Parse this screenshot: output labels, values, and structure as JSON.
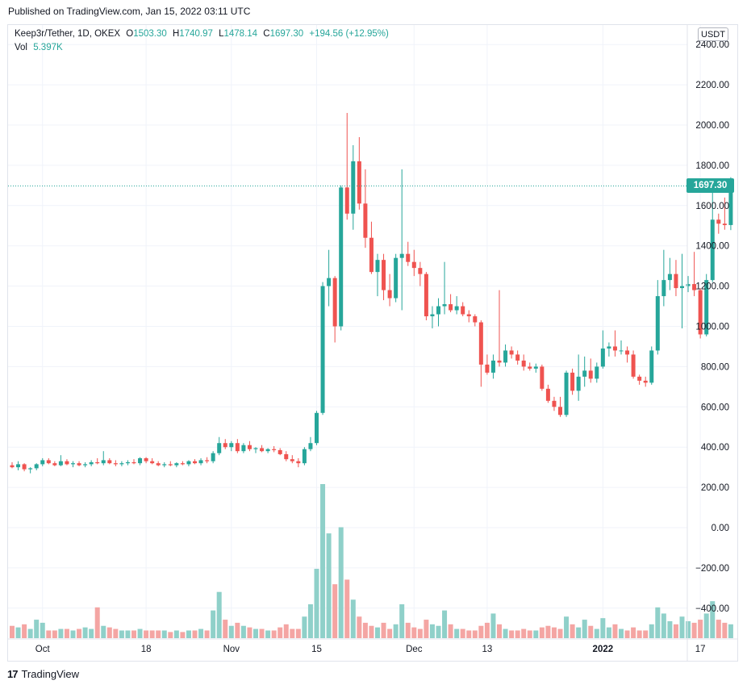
{
  "header": {
    "published": "Published on TradingView.com, Jan 15, 2022 03:11 UTC"
  },
  "legend": {
    "symbol": "Keep3r/Tether, 1D, OKEX",
    "o_label": "O",
    "o": "1503.30",
    "h_label": "H",
    "h": "1740.97",
    "l_label": "L",
    "l": "1478.14",
    "c_label": "C",
    "c": "1697.30",
    "change": "+194.56 (+12.95%)",
    "vol_label": "Vol",
    "vol": "5.397K"
  },
  "currency_button": "USDT",
  "last_price_label": "1697.30",
  "brand": {
    "logo": "17",
    "name": "TradingView"
  },
  "colors": {
    "up": "#26a69a",
    "down": "#ef5350",
    "vol_up": "#8fd0c9",
    "vol_down": "#f4a5a3",
    "grid": "#f0f3fa"
  },
  "chart_data": {
    "type": "candlestick",
    "title": "Keep3r/Tether, 1D, OKEX",
    "y_ticks": [
      "2400.00",
      "2200.00",
      "2000.00",
      "1800.00",
      "1600.00",
      "1400.00",
      "1200.00",
      "1000.00",
      "800.00",
      "600.00",
      "400.00",
      "200.00",
      "0.00",
      "−200.00",
      "−400.00"
    ],
    "ylim": [
      -550,
      2420
    ],
    "x_ticks": [
      "Oct",
      "18",
      "Nov",
      "15",
      "Dec",
      "13",
      "2022",
      "17"
    ],
    "bold_x_ticks": [
      "2022"
    ],
    "x_tick_dates": [
      "2021-10-01",
      "2021-10-18",
      "2021-11-01",
      "2021-11-15",
      "2021-12-01",
      "2021-12-13",
      "2022-01-01",
      "2022-01-17"
    ],
    "last_price": 1697.3,
    "volume_axis": {
      "note": "volume pane shares the bottom of the chart",
      "max_volume": 100
    },
    "candles": [
      {
        "d": "2021-09-26",
        "o": 310,
        "h": 325,
        "l": 295,
        "c": 300,
        "v": 8
      },
      {
        "d": "2021-09-27",
        "o": 300,
        "h": 330,
        "l": 285,
        "c": 315,
        "v": 7
      },
      {
        "d": "2021-09-28",
        "o": 315,
        "h": 320,
        "l": 280,
        "c": 290,
        "v": 9
      },
      {
        "d": "2021-09-29",
        "o": 290,
        "h": 300,
        "l": 270,
        "c": 295,
        "v": 6
      },
      {
        "d": "2021-09-30",
        "o": 295,
        "h": 320,
        "l": 285,
        "c": 315,
        "v": 12
      },
      {
        "d": "2021-10-01",
        "o": 315,
        "h": 345,
        "l": 305,
        "c": 335,
        "v": 10
      },
      {
        "d": "2021-10-02",
        "o": 335,
        "h": 345,
        "l": 315,
        "c": 320,
        "v": 5
      },
      {
        "d": "2021-10-03",
        "o": 320,
        "h": 330,
        "l": 305,
        "c": 310,
        "v": 5
      },
      {
        "d": "2021-10-04",
        "o": 310,
        "h": 360,
        "l": 305,
        "c": 330,
        "v": 6
      },
      {
        "d": "2021-10-05",
        "o": 330,
        "h": 340,
        "l": 310,
        "c": 315,
        "v": 6
      },
      {
        "d": "2021-10-06",
        "o": 315,
        "h": 330,
        "l": 300,
        "c": 320,
        "v": 5
      },
      {
        "d": "2021-10-07",
        "o": 320,
        "h": 330,
        "l": 305,
        "c": 310,
        "v": 6
      },
      {
        "d": "2021-10-08",
        "o": 310,
        "h": 325,
        "l": 300,
        "c": 315,
        "v": 7
      },
      {
        "d": "2021-10-09",
        "o": 315,
        "h": 335,
        "l": 305,
        "c": 325,
        "v": 6
      },
      {
        "d": "2021-10-10",
        "o": 325,
        "h": 345,
        "l": 315,
        "c": 320,
        "v": 20
      },
      {
        "d": "2021-10-11",
        "o": 320,
        "h": 380,
        "l": 310,
        "c": 335,
        "v": 8
      },
      {
        "d": "2021-10-12",
        "o": 335,
        "h": 345,
        "l": 315,
        "c": 320,
        "v": 7
      },
      {
        "d": "2021-10-13",
        "o": 320,
        "h": 335,
        "l": 305,
        "c": 315,
        "v": 6
      },
      {
        "d": "2021-10-14",
        "o": 315,
        "h": 330,
        "l": 305,
        "c": 320,
        "v": 5
      },
      {
        "d": "2021-10-15",
        "o": 320,
        "h": 335,
        "l": 310,
        "c": 325,
        "v": 5
      },
      {
        "d": "2021-10-16",
        "o": 325,
        "h": 340,
        "l": 315,
        "c": 320,
        "v": 5
      },
      {
        "d": "2021-10-17",
        "o": 320,
        "h": 350,
        "l": 310,
        "c": 345,
        "v": 6
      },
      {
        "d": "2021-10-18",
        "o": 345,
        "h": 350,
        "l": 320,
        "c": 330,
        "v": 5
      },
      {
        "d": "2021-10-19",
        "o": 330,
        "h": 345,
        "l": 315,
        "c": 320,
        "v": 5
      },
      {
        "d": "2021-10-20",
        "o": 320,
        "h": 330,
        "l": 305,
        "c": 310,
        "v": 5
      },
      {
        "d": "2021-10-21",
        "o": 310,
        "h": 325,
        "l": 300,
        "c": 315,
        "v": 5
      },
      {
        "d": "2021-10-22",
        "o": 315,
        "h": 330,
        "l": 305,
        "c": 310,
        "v": 4
      },
      {
        "d": "2021-10-23",
        "o": 310,
        "h": 325,
        "l": 300,
        "c": 320,
        "v": 5
      },
      {
        "d": "2021-10-24",
        "o": 320,
        "h": 330,
        "l": 310,
        "c": 315,
        "v": 4
      },
      {
        "d": "2021-10-25",
        "o": 315,
        "h": 335,
        "l": 305,
        "c": 330,
        "v": 5
      },
      {
        "d": "2021-10-26",
        "o": 330,
        "h": 340,
        "l": 315,
        "c": 320,
        "v": 5
      },
      {
        "d": "2021-10-27",
        "o": 320,
        "h": 345,
        "l": 310,
        "c": 335,
        "v": 6
      },
      {
        "d": "2021-10-28",
        "o": 335,
        "h": 350,
        "l": 320,
        "c": 330,
        "v": 5
      },
      {
        "d": "2021-10-29",
        "o": 330,
        "h": 380,
        "l": 320,
        "c": 370,
        "v": 18
      },
      {
        "d": "2021-10-30",
        "o": 370,
        "h": 450,
        "l": 360,
        "c": 420,
        "v": 30
      },
      {
        "d": "2021-10-31",
        "o": 420,
        "h": 440,
        "l": 390,
        "c": 400,
        "v": 12
      },
      {
        "d": "2021-11-01",
        "o": 400,
        "h": 430,
        "l": 380,
        "c": 420,
        "v": 8
      },
      {
        "d": "2021-11-02",
        "o": 420,
        "h": 440,
        "l": 370,
        "c": 380,
        "v": 10
      },
      {
        "d": "2021-11-03",
        "o": 380,
        "h": 420,
        "l": 370,
        "c": 410,
        "v": 8
      },
      {
        "d": "2021-11-04",
        "o": 410,
        "h": 430,
        "l": 380,
        "c": 390,
        "v": 7
      },
      {
        "d": "2021-11-05",
        "o": 390,
        "h": 400,
        "l": 370,
        "c": 395,
        "v": 6
      },
      {
        "d": "2021-11-06",
        "o": 395,
        "h": 410,
        "l": 375,
        "c": 380,
        "v": 6
      },
      {
        "d": "2021-11-07",
        "o": 380,
        "h": 395,
        "l": 370,
        "c": 390,
        "v": 5
      },
      {
        "d": "2021-11-08",
        "o": 390,
        "h": 405,
        "l": 375,
        "c": 385,
        "v": 5
      },
      {
        "d": "2021-11-09",
        "o": 385,
        "h": 395,
        "l": 360,
        "c": 365,
        "v": 7
      },
      {
        "d": "2021-11-10",
        "o": 365,
        "h": 380,
        "l": 330,
        "c": 340,
        "v": 9
      },
      {
        "d": "2021-11-11",
        "o": 340,
        "h": 360,
        "l": 320,
        "c": 330,
        "v": 6
      },
      {
        "d": "2021-11-12",
        "o": 330,
        "h": 345,
        "l": 300,
        "c": 320,
        "v": 6
      },
      {
        "d": "2021-11-13",
        "o": 320,
        "h": 400,
        "l": 310,
        "c": 390,
        "v": 14
      },
      {
        "d": "2021-11-14",
        "o": 390,
        "h": 450,
        "l": 380,
        "c": 420,
        "v": 22
      },
      {
        "d": "2021-11-15",
        "o": 420,
        "h": 580,
        "l": 410,
        "c": 570,
        "v": 45
      },
      {
        "d": "2021-11-16",
        "o": 570,
        "h": 1220,
        "l": 560,
        "c": 1200,
        "v": 100
      },
      {
        "d": "2021-11-17",
        "o": 1200,
        "h": 1380,
        "l": 1100,
        "c": 1240,
        "v": 68
      },
      {
        "d": "2021-11-18",
        "o": 1240,
        "h": 1250,
        "l": 920,
        "c": 1000,
        "v": 35
      },
      {
        "d": "2021-11-19",
        "o": 1000,
        "h": 1700,
        "l": 980,
        "c": 1690,
        "v": 72
      },
      {
        "d": "2021-11-20",
        "o": 1690,
        "h": 2060,
        "l": 1530,
        "c": 1560,
        "v": 38
      },
      {
        "d": "2021-11-21",
        "o": 1560,
        "h": 1900,
        "l": 1480,
        "c": 1820,
        "v": 25
      },
      {
        "d": "2021-11-22",
        "o": 1820,
        "h": 1940,
        "l": 1580,
        "c": 1610,
        "v": 14
      },
      {
        "d": "2021-11-23",
        "o": 1610,
        "h": 1780,
        "l": 1390,
        "c": 1440,
        "v": 10
      },
      {
        "d": "2021-11-24",
        "o": 1440,
        "h": 1520,
        "l": 1260,
        "c": 1270,
        "v": 8
      },
      {
        "d": "2021-11-25",
        "o": 1270,
        "h": 1360,
        "l": 1150,
        "c": 1330,
        "v": 7
      },
      {
        "d": "2021-11-26",
        "o": 1330,
        "h": 1360,
        "l": 1130,
        "c": 1180,
        "v": 10
      },
      {
        "d": "2021-11-27",
        "o": 1180,
        "h": 1260,
        "l": 1100,
        "c": 1140,
        "v": 6
      },
      {
        "d": "2021-11-28",
        "o": 1140,
        "h": 1360,
        "l": 1120,
        "c": 1340,
        "v": 9
      },
      {
        "d": "2021-11-29",
        "o": 1340,
        "h": 1780,
        "l": 1080,
        "c": 1360,
        "v": 22
      },
      {
        "d": "2021-11-30",
        "o": 1360,
        "h": 1420,
        "l": 1300,
        "c": 1320,
        "v": 10
      },
      {
        "d": "2021-12-01",
        "o": 1320,
        "h": 1380,
        "l": 1250,
        "c": 1290,
        "v": 7
      },
      {
        "d": "2021-12-02",
        "o": 1290,
        "h": 1320,
        "l": 1200,
        "c": 1260,
        "v": 6
      },
      {
        "d": "2021-12-03",
        "o": 1260,
        "h": 1270,
        "l": 1030,
        "c": 1050,
        "v": 12
      },
      {
        "d": "2021-12-04",
        "o": 1050,
        "h": 1100,
        "l": 990,
        "c": 1060,
        "v": 9
      },
      {
        "d": "2021-12-05",
        "o": 1060,
        "h": 1140,
        "l": 1000,
        "c": 1100,
        "v": 8
      },
      {
        "d": "2021-12-06",
        "o": 1100,
        "h": 1320,
        "l": 1060,
        "c": 1110,
        "v": 18
      },
      {
        "d": "2021-12-07",
        "o": 1110,
        "h": 1160,
        "l": 1070,
        "c": 1080,
        "v": 9
      },
      {
        "d": "2021-12-08",
        "o": 1080,
        "h": 1150,
        "l": 1060,
        "c": 1100,
        "v": 6
      },
      {
        "d": "2021-12-09",
        "o": 1100,
        "h": 1120,
        "l": 1050,
        "c": 1060,
        "v": 6
      },
      {
        "d": "2021-12-10",
        "o": 1060,
        "h": 1080,
        "l": 1020,
        "c": 1050,
        "v": 5
      },
      {
        "d": "2021-12-11",
        "o": 1050,
        "h": 1060,
        "l": 1000,
        "c": 1020,
        "v": 5
      },
      {
        "d": "2021-12-12",
        "o": 1020,
        "h": 1030,
        "l": 700,
        "c": 810,
        "v": 8
      },
      {
        "d": "2021-12-13",
        "o": 810,
        "h": 860,
        "l": 760,
        "c": 770,
        "v": 10
      },
      {
        "d": "2021-12-14",
        "o": 770,
        "h": 860,
        "l": 740,
        "c": 830,
        "v": 16
      },
      {
        "d": "2021-12-15",
        "o": 830,
        "h": 1180,
        "l": 800,
        "c": 820,
        "v": 9
      },
      {
        "d": "2021-12-16",
        "o": 820,
        "h": 910,
        "l": 800,
        "c": 880,
        "v": 6
      },
      {
        "d": "2021-12-17",
        "o": 880,
        "h": 900,
        "l": 840,
        "c": 860,
        "v": 5
      },
      {
        "d": "2021-12-18",
        "o": 860,
        "h": 880,
        "l": 810,
        "c": 830,
        "v": 5
      },
      {
        "d": "2021-12-19",
        "o": 830,
        "h": 860,
        "l": 780,
        "c": 800,
        "v": 6
      },
      {
        "d": "2021-12-20",
        "o": 800,
        "h": 820,
        "l": 780,
        "c": 790,
        "v": 5
      },
      {
        "d": "2021-12-21",
        "o": 790,
        "h": 815,
        "l": 770,
        "c": 800,
        "v": 5
      },
      {
        "d": "2021-12-22",
        "o": 800,
        "h": 810,
        "l": 680,
        "c": 690,
        "v": 7
      },
      {
        "d": "2021-12-23",
        "o": 690,
        "h": 710,
        "l": 620,
        "c": 630,
        "v": 8
      },
      {
        "d": "2021-12-24",
        "o": 630,
        "h": 650,
        "l": 580,
        "c": 600,
        "v": 7
      },
      {
        "d": "2021-12-25",
        "o": 600,
        "h": 650,
        "l": 550,
        "c": 560,
        "v": 6
      },
      {
        "d": "2021-12-26",
        "o": 560,
        "h": 780,
        "l": 550,
        "c": 770,
        "v": 14
      },
      {
        "d": "2021-12-27",
        "o": 770,
        "h": 790,
        "l": 660,
        "c": 680,
        "v": 9
      },
      {
        "d": "2021-12-28",
        "o": 680,
        "h": 860,
        "l": 630,
        "c": 750,
        "v": 7
      },
      {
        "d": "2021-12-29",
        "o": 750,
        "h": 850,
        "l": 700,
        "c": 780,
        "v": 12
      },
      {
        "d": "2021-12-30",
        "o": 780,
        "h": 840,
        "l": 720,
        "c": 740,
        "v": 8
      },
      {
        "d": "2021-12-31",
        "o": 740,
        "h": 820,
        "l": 720,
        "c": 800,
        "v": 6
      },
      {
        "d": "2022-01-01",
        "o": 800,
        "h": 980,
        "l": 790,
        "c": 890,
        "v": 13
      },
      {
        "d": "2022-01-02",
        "o": 890,
        "h": 920,
        "l": 850,
        "c": 900,
        "v": 7
      },
      {
        "d": "2022-01-03",
        "o": 900,
        "h": 980,
        "l": 850,
        "c": 880,
        "v": 9
      },
      {
        "d": "2022-01-04",
        "o": 880,
        "h": 930,
        "l": 860,
        "c": 880,
        "v": 6
      },
      {
        "d": "2022-01-05",
        "o": 880,
        "h": 900,
        "l": 820,
        "c": 860,
        "v": 5
      },
      {
        "d": "2022-01-06",
        "o": 860,
        "h": 880,
        "l": 740,
        "c": 750,
        "v": 7
      },
      {
        "d": "2022-01-07",
        "o": 750,
        "h": 760,
        "l": 710,
        "c": 730,
        "v": 5
      },
      {
        "d": "2022-01-08",
        "o": 730,
        "h": 750,
        "l": 700,
        "c": 720,
        "v": 5
      },
      {
        "d": "2022-01-09",
        "o": 720,
        "h": 900,
        "l": 710,
        "c": 880,
        "v": 9
      },
      {
        "d": "2022-01-10",
        "o": 880,
        "h": 1230,
        "l": 860,
        "c": 1150,
        "v": 20
      },
      {
        "d": "2022-01-11",
        "o": 1150,
        "h": 1380,
        "l": 1100,
        "c": 1230,
        "v": 16
      },
      {
        "d": "2022-01-12",
        "o": 1230,
        "h": 1340,
        "l": 1180,
        "c": 1260,
        "v": 11
      },
      {
        "d": "2022-01-13",
        "o": 1260,
        "h": 1330,
        "l": 1150,
        "c": 1190,
        "v": 9
      },
      {
        "d": "2022-01-14",
        "o": 1190,
        "h": 1360,
        "l": 990,
        "c": 1200,
        "v": 14
      },
      {
        "d": "2022-01-15",
        "o": 1200,
        "h": 1250,
        "l": 1170,
        "c": 1210,
        "v": 11
      },
      {
        "d": "2022-01-16",
        "o": 1210,
        "h": 1370,
        "l": 1150,
        "c": 1180,
        "v": 10
      },
      {
        "d": "2022-01-17",
        "o": 1180,
        "h": 1190,
        "l": 940,
        "c": 960,
        "v": 12
      },
      {
        "d": "2022-01-18",
        "o": 960,
        "h": 1260,
        "l": 950,
        "c": 1230,
        "v": 16
      },
      {
        "d": "2022-01-19",
        "o": 1230,
        "h": 1690,
        "l": 1220,
        "c": 1530,
        "v": 24
      },
      {
        "d": "2022-01-20",
        "o": 1530,
        "h": 1560,
        "l": 1460,
        "c": 1510,
        "v": 12
      },
      {
        "d": "2022-01-21",
        "o": 1510,
        "h": 1640,
        "l": 1480,
        "c": 1503,
        "v": 10
      },
      {
        "d": "2022-01-22",
        "o": 1503.3,
        "h": 1740.97,
        "l": 1478.14,
        "c": 1697.3,
        "v": 9
      }
    ]
  }
}
